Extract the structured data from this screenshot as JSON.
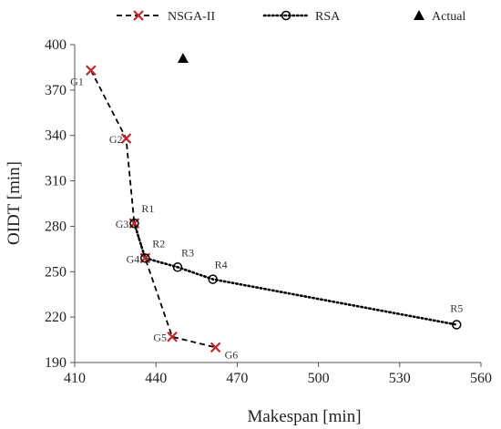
{
  "colors": {
    "nsga": "#c0272d",
    "line": "#000000",
    "axis": "#555555"
  },
  "chart_data": {
    "type": "scatter",
    "title": "",
    "xlabel": "Makespan [min]",
    "ylabel": "OIDT [min]",
    "xlim": [
      410,
      560
    ],
    "ylim": [
      190,
      400
    ],
    "xticks": [
      410,
      440,
      470,
      500,
      530,
      560
    ],
    "yticks": [
      190,
      220,
      250,
      280,
      310,
      340,
      370,
      400
    ],
    "grid": false,
    "legend_position": "top",
    "series": [
      {
        "name": "NSGA-II",
        "marker": "x-mark",
        "line": "dashed",
        "points": [
          {
            "x": 416,
            "y": 383,
            "label": "G1"
          },
          {
            "x": 429,
            "y": 338,
            "label": "G2"
          },
          {
            "x": 432,
            "y": 282,
            "label": "G3"
          },
          {
            "x": 436,
            "y": 259,
            "label": "G4"
          },
          {
            "x": 446,
            "y": 207,
            "label": "G5"
          },
          {
            "x": 462,
            "y": 200,
            "label": "G6"
          }
        ]
      },
      {
        "name": "RSA",
        "marker": "open-circle",
        "line": "dotted",
        "points": [
          {
            "x": 432,
            "y": 282,
            "label": "R1"
          },
          {
            "x": 436,
            "y": 259,
            "label": "R2"
          },
          {
            "x": 448,
            "y": 253,
            "label": "R3"
          },
          {
            "x": 461,
            "y": 245,
            "label": "R4"
          },
          {
            "x": 551,
            "y": 215,
            "label": "R5"
          }
        ]
      },
      {
        "name": "Actual",
        "marker": "filled-triangle",
        "line": "none",
        "points": [
          {
            "x": 450,
            "y": 391,
            "label": ""
          }
        ]
      }
    ]
  }
}
